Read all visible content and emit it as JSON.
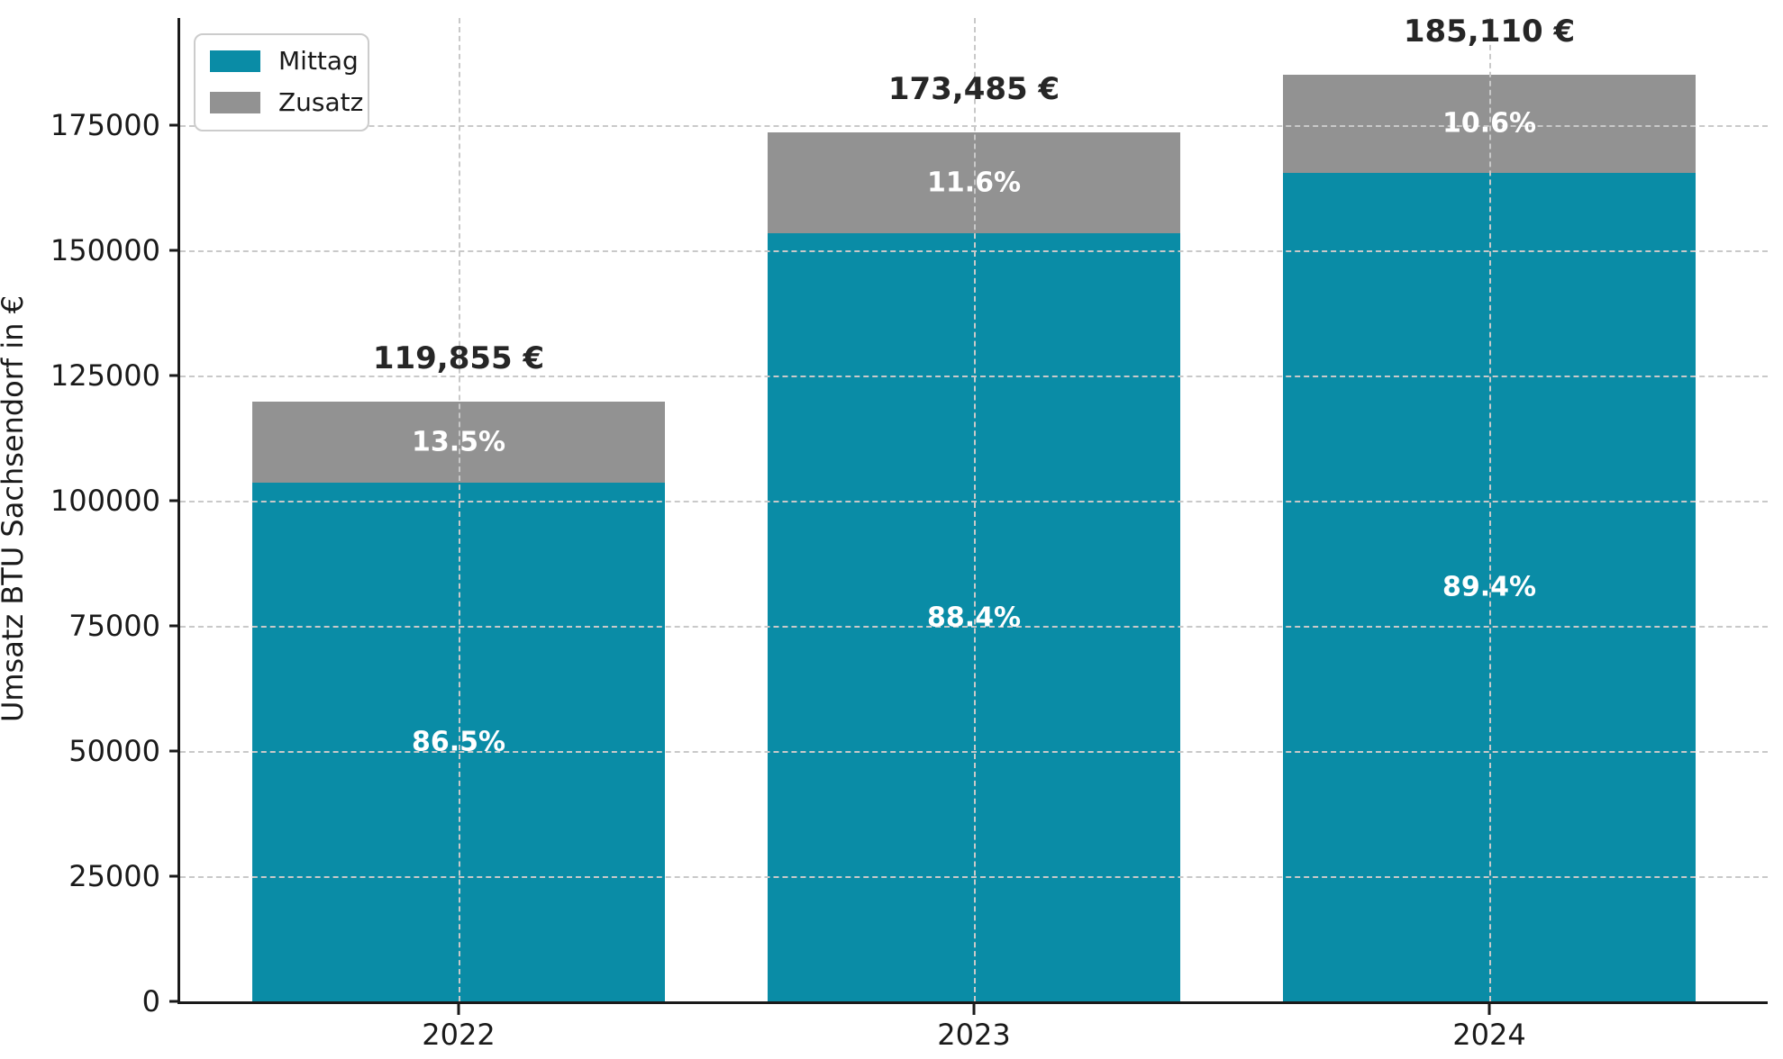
{
  "chart_data": {
    "type": "bar",
    "stacked": true,
    "title": "",
    "xlabel": "",
    "ylabel": "Umsatz BTU Sachsendorf in €",
    "categories": [
      "2022",
      "2023",
      "2024"
    ],
    "series": [
      {
        "name": "Mittag",
        "color": "#0a8ca6",
        "values": [
          103675,
          153361,
          165488
        ],
        "pct_labels": [
          "86.5%",
          "88.4%",
          "89.4%"
        ]
      },
      {
        "name": "Zusatz",
        "color": "#929292",
        "values": [
          16180,
          20124,
          19622
        ],
        "pct_labels": [
          "13.5%",
          "11.6%",
          "10.6%"
        ]
      }
    ],
    "totals": [
      119855,
      173485,
      185110
    ],
    "total_labels": [
      "119,855 €",
      "173,485 €",
      "185,110 €"
    ],
    "yticks": [
      0,
      25000,
      50000,
      75000,
      100000,
      125000,
      150000,
      175000
    ],
    "ylim": [
      0,
      196400
    ],
    "grid": "dashed, horizontal at yticks and vertical at bar centers, drawn over bars",
    "legend_position": "upper left",
    "legend_entries": [
      "Mittag",
      "Zusatz"
    ]
  }
}
